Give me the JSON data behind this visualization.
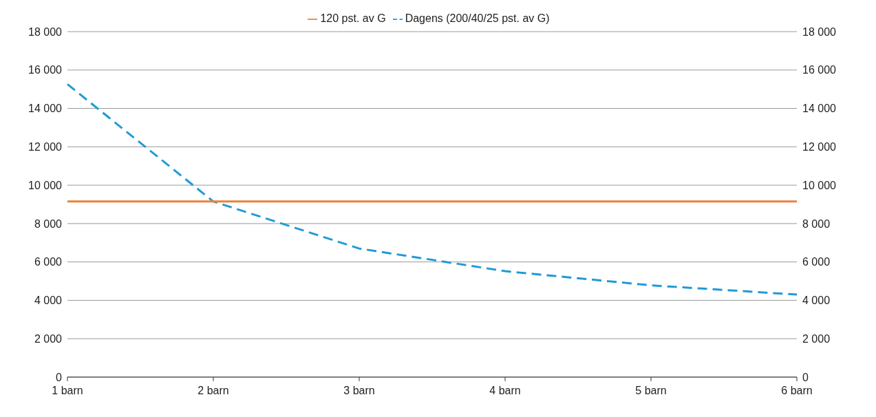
{
  "chart_data": {
    "type": "line",
    "categories": [
      "1 barn",
      "2 barn",
      "3 barn",
      "4 barn",
      "5 barn",
      "6 barn"
    ],
    "series": [
      {
        "name": "Dagens (200/40/25 pst. av G)",
        "color": "#1f9ad6",
        "line_style": "dashed",
        "values": [
          15260,
          9150,
          6700,
          5520,
          4780,
          4300
        ]
      },
      {
        "name": "120 pst. av G",
        "color": "#f07f34",
        "line_style": "solid",
        "values": [
          9150,
          9150,
          9150,
          9150,
          9150,
          9150
        ]
      }
    ],
    "ylim": [
      0,
      18000
    ],
    "yticks": [
      {
        "value": 0,
        "label": "0"
      },
      {
        "value": 2000,
        "label": "2 000"
      },
      {
        "value": 4000,
        "label": "4 000"
      },
      {
        "value": 6000,
        "label": "6 000"
      },
      {
        "value": 8000,
        "label": "8 000"
      },
      {
        "value": 10000,
        "label": "10 000"
      },
      {
        "value": 12000,
        "label": "12 000"
      },
      {
        "value": 14000,
        "label": "14 000"
      },
      {
        "value": 16000,
        "label": "16 000"
      },
      {
        "value": 18000,
        "label": "18 000"
      }
    ],
    "y2lim": [
      0,
      18000
    ],
    "y2ticks": [
      {
        "value": 0,
        "label": "0"
      },
      {
        "value": 2000,
        "label": "2 000"
      },
      {
        "value": 4000,
        "label": "4 000"
      },
      {
        "value": 6000,
        "label": "6 000"
      },
      {
        "value": 8000,
        "label": "8 000"
      },
      {
        "value": 10000,
        "label": "10 000"
      },
      {
        "value": 12000,
        "label": "12 000"
      },
      {
        "value": 14000,
        "label": "14 000"
      },
      {
        "value": 16000,
        "label": "16 000"
      },
      {
        "value": 18000,
        "label": "18 000"
      }
    ],
    "grid": "y",
    "legend": "top",
    "marker": "none"
  }
}
